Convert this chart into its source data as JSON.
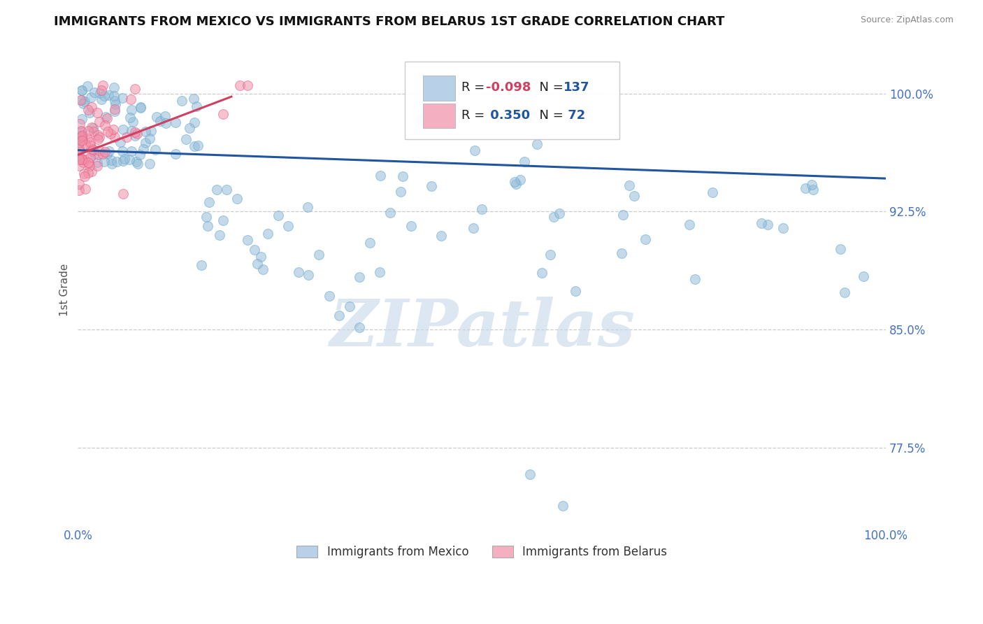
{
  "title": "IMMIGRANTS FROM MEXICO VS IMMIGRANTS FROM BELARUS 1ST GRADE CORRELATION CHART",
  "source_text": "Source: ZipAtlas.com",
  "ylabel": "1st Grade",
  "watermark": "ZIPatlas",
  "x_min": 0.0,
  "x_max": 1.0,
  "y_min": 0.725,
  "y_max": 1.025,
  "yticks": [
    1.0,
    0.925,
    0.85,
    0.775
  ],
  "ytick_labels": [
    "100.0%",
    "92.5%",
    "85.0%",
    "77.5%"
  ],
  "blue_color": "#94bcd8",
  "blue_edge_color": "#6aaad4",
  "pink_color": "#f090a8",
  "pink_edge_color": "#e8608a",
  "blue_line_color": "#2155a0",
  "pink_line_color": "#d04060",
  "scatter_alpha": 0.55,
  "scatter_size": 100,
  "background_color": "#ffffff",
  "title_color": "#111111",
  "tick_color": "#4472c4",
  "grid_color": "#cccccc",
  "legend_blue_fill": "#b8d0e8",
  "legend_pink_fill": "#f4b0c0",
  "legend_R_color": "#d04060",
  "legend_N_color": "#2155a0",
  "legend_label_color": "#222222",
  "watermark_color": "#c5d8ea",
  "blue_line_start_x": 0.0,
  "blue_line_start_y": 0.964,
  "blue_line_end_x": 1.0,
  "blue_line_end_y": 0.946,
  "pink_line_start_x": 0.0,
  "pink_line_start_y": 0.961,
  "pink_line_end_x": 0.19,
  "pink_line_end_y": 0.998
}
